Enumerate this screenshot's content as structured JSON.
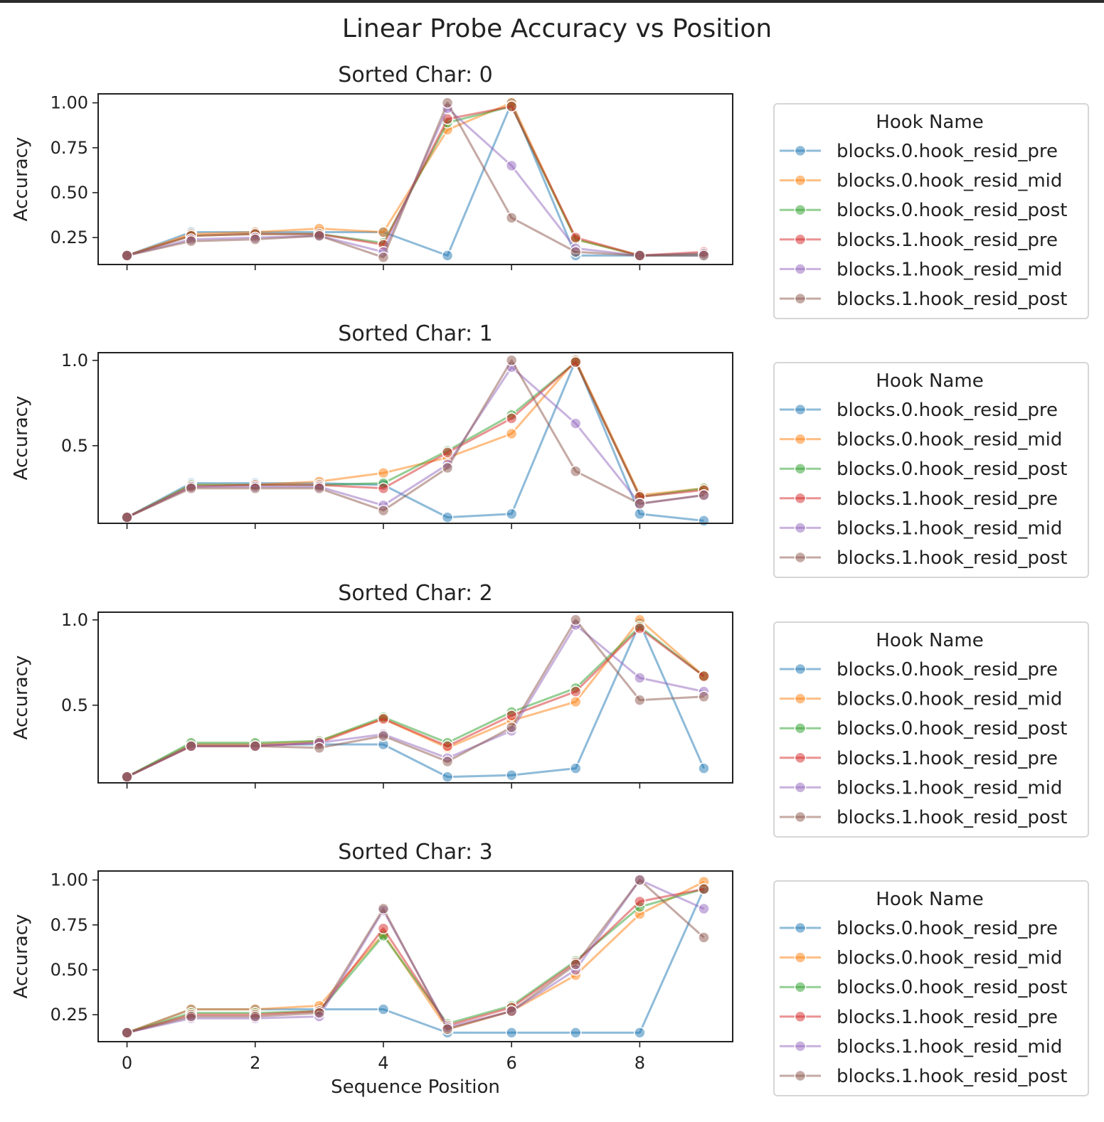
{
  "figure": {
    "title": "Linear Probe Accuracy vs Position",
    "xlabel": "Sequence Position",
    "ylabel": "Accuracy",
    "legend_title": "Hook Name"
  },
  "chart_data": [
    {
      "type": "line",
      "title": "Sorted Char: 0",
      "xlabel": "",
      "ylabel": "Accuracy",
      "x": [
        0,
        1,
        2,
        3,
        4,
        5,
        6,
        7,
        8,
        9
      ],
      "xticks": [
        "0",
        "2",
        "4",
        "6",
        "8"
      ],
      "xticks_values": [
        0,
        2,
        4,
        6,
        8
      ],
      "yticks": [
        "0.25",
        "0.50",
        "0.75",
        "1.00"
      ],
      "yticks_values": [
        0.25,
        0.5,
        0.75,
        1.0
      ],
      "xlim": [
        -0.45,
        9.45
      ],
      "ylim": [
        0.1,
        1.05
      ],
      "legend_title": "Hook Name",
      "legend_position": "right",
      "grid": false,
      "series": [
        {
          "name": "blocks.0.hook_resid_pre",
          "color": "#1f77b4",
          "values": [
            0.15,
            0.28,
            0.28,
            0.28,
            0.28,
            0.15,
            1.0,
            0.15,
            0.15,
            0.15
          ]
        },
        {
          "name": "blocks.0.hook_resid_mid",
          "color": "#ff7f0e",
          "values": [
            0.15,
            0.27,
            0.28,
            0.3,
            0.28,
            0.85,
            1.0,
            0.24,
            0.15,
            0.16
          ]
        },
        {
          "name": "blocks.0.hook_resid_post",
          "color": "#2ca02c",
          "values": [
            0.15,
            0.26,
            0.27,
            0.27,
            0.22,
            0.89,
            0.98,
            0.24,
            0.15,
            0.16
          ]
        },
        {
          "name": "blocks.1.hook_resid_pre",
          "color": "#d62728",
          "values": [
            0.15,
            0.26,
            0.27,
            0.27,
            0.21,
            0.91,
            0.98,
            0.25,
            0.15,
            0.17
          ]
        },
        {
          "name": "blocks.1.hook_resid_mid",
          "color": "#9467bd",
          "values": [
            0.15,
            0.24,
            0.25,
            0.26,
            0.17,
            0.97,
            0.65,
            0.19,
            0.15,
            0.16
          ]
        },
        {
          "name": "blocks.1.hook_resid_post",
          "color": "#8c564b",
          "values": [
            0.15,
            0.23,
            0.24,
            0.26,
            0.14,
            1.0,
            0.36,
            0.17,
            0.15,
            0.15
          ]
        }
      ]
    },
    {
      "type": "line",
      "title": "Sorted Char: 1",
      "xlabel": "",
      "ylabel": "Accuracy",
      "x": [
        0,
        1,
        2,
        3,
        4,
        5,
        6,
        7,
        8,
        9
      ],
      "xticks": [
        "0",
        "2",
        "4",
        "6",
        "8"
      ],
      "xticks_values": [
        0,
        2,
        4,
        6,
        8
      ],
      "yticks": [
        "0.5",
        "1.0"
      ],
      "yticks_values": [
        0.5,
        1.0
      ],
      "xlim": [
        -0.45,
        9.45
      ],
      "ylim": [
        0.045,
        1.045
      ],
      "legend_title": "Hook Name",
      "legend_position": "right",
      "grid": false,
      "series": [
        {
          "name": "blocks.0.hook_resid_pre",
          "color": "#1f77b4",
          "values": [
            0.08,
            0.28,
            0.28,
            0.28,
            0.27,
            0.08,
            0.1,
            1.0,
            0.1,
            0.06
          ]
        },
        {
          "name": "blocks.0.hook_resid_mid",
          "color": "#ff7f0e",
          "values": [
            0.08,
            0.27,
            0.27,
            0.29,
            0.34,
            0.43,
            0.57,
            1.0,
            0.21,
            0.25
          ]
        },
        {
          "name": "blocks.0.hook_resid_post",
          "color": "#2ca02c",
          "values": [
            0.08,
            0.27,
            0.27,
            0.27,
            0.28,
            0.47,
            0.68,
            0.99,
            0.2,
            0.25
          ]
        },
        {
          "name": "blocks.1.hook_resid_pre",
          "color": "#d62728",
          "values": [
            0.08,
            0.26,
            0.27,
            0.27,
            0.25,
            0.46,
            0.66,
            0.99,
            0.2,
            0.24
          ]
        },
        {
          "name": "blocks.1.hook_resid_mid",
          "color": "#9467bd",
          "values": [
            0.08,
            0.26,
            0.26,
            0.26,
            0.15,
            0.39,
            0.96,
            0.63,
            0.16,
            0.21
          ]
        },
        {
          "name": "blocks.1.hook_resid_post",
          "color": "#8c564b",
          "values": [
            0.08,
            0.25,
            0.25,
            0.25,
            0.12,
            0.37,
            1.0,
            0.35,
            0.16,
            0.21
          ]
        }
      ]
    },
    {
      "type": "line",
      "title": "Sorted Char: 2",
      "xlabel": "",
      "ylabel": "Accuracy",
      "x": [
        0,
        1,
        2,
        3,
        4,
        5,
        6,
        7,
        8,
        9
      ],
      "xticks": [
        "0",
        "2",
        "4",
        "6",
        "8"
      ],
      "xticks_values": [
        0,
        2,
        4,
        6,
        8
      ],
      "yticks": [
        "0.5",
        "1.0"
      ],
      "yticks_values": [
        0.5,
        1.0
      ],
      "xlim": [
        -0.45,
        9.45
      ],
      "ylim": [
        0.045,
        1.045
      ],
      "legend_title": "Hook Name",
      "legend_position": "right",
      "grid": false,
      "series": [
        {
          "name": "blocks.0.hook_resid_pre",
          "color": "#1f77b4",
          "values": [
            0.08,
            0.27,
            0.27,
            0.27,
            0.27,
            0.08,
            0.09,
            0.13,
            0.98,
            0.13
          ]
        },
        {
          "name": "blocks.0.hook_resid_mid",
          "color": "#ff7f0e",
          "values": [
            0.08,
            0.27,
            0.27,
            0.29,
            0.42,
            0.25,
            0.41,
            0.52,
            1.0,
            0.67
          ]
        },
        {
          "name": "blocks.0.hook_resid_post",
          "color": "#2ca02c",
          "values": [
            0.08,
            0.28,
            0.28,
            0.29,
            0.43,
            0.28,
            0.46,
            0.6,
            0.96,
            0.67
          ]
        },
        {
          "name": "blocks.1.hook_resid_pre",
          "color": "#d62728",
          "values": [
            0.08,
            0.26,
            0.26,
            0.28,
            0.42,
            0.26,
            0.44,
            0.58,
            0.95,
            0.67
          ]
        },
        {
          "name": "blocks.1.hook_resid_mid",
          "color": "#9467bd",
          "values": [
            0.08,
            0.26,
            0.26,
            0.28,
            0.33,
            0.19,
            0.35,
            0.97,
            0.66,
            0.58
          ]
        },
        {
          "name": "blocks.1.hook_resid_post",
          "color": "#8c564b",
          "values": [
            0.08,
            0.26,
            0.26,
            0.25,
            0.32,
            0.17,
            0.37,
            1.0,
            0.53,
            0.55
          ]
        }
      ]
    },
    {
      "type": "line",
      "title": "Sorted Char: 3",
      "xlabel": "Sequence Position",
      "ylabel": "Accuracy",
      "x": [
        0,
        1,
        2,
        3,
        4,
        5,
        6,
        7,
        8,
        9
      ],
      "xticks": [
        "0",
        "2",
        "4",
        "6",
        "8"
      ],
      "xticks_values": [
        0,
        2,
        4,
        6,
        8
      ],
      "yticks": [
        "0.25",
        "0.50",
        "0.75",
        "1.00"
      ],
      "yticks_values": [
        0.25,
        0.5,
        0.75,
        1.0
      ],
      "xlim": [
        -0.45,
        9.45
      ],
      "ylim": [
        0.1,
        1.05
      ],
      "legend_title": "Hook Name",
      "legend_position": "right",
      "grid": false,
      "series": [
        {
          "name": "blocks.0.hook_resid_pre",
          "color": "#1f77b4",
          "values": [
            0.15,
            0.28,
            0.28,
            0.28,
            0.28,
            0.15,
            0.15,
            0.15,
            0.15,
            0.95
          ]
        },
        {
          "name": "blocks.0.hook_resid_mid",
          "color": "#ff7f0e",
          "values": [
            0.15,
            0.28,
            0.28,
            0.3,
            0.7,
            0.17,
            0.27,
            0.47,
            0.81,
            0.99
          ]
        },
        {
          "name": "blocks.0.hook_resid_post",
          "color": "#2ca02c",
          "values": [
            0.15,
            0.26,
            0.26,
            0.27,
            0.69,
            0.2,
            0.3,
            0.55,
            0.85,
            0.95
          ]
        },
        {
          "name": "blocks.1.hook_resid_pre",
          "color": "#d62728",
          "values": [
            0.15,
            0.25,
            0.25,
            0.27,
            0.73,
            0.19,
            0.29,
            0.54,
            0.88,
            0.95
          ]
        },
        {
          "name": "blocks.1.hook_resid_mid",
          "color": "#9467bd",
          "values": [
            0.15,
            0.23,
            0.23,
            0.24,
            0.83,
            0.18,
            0.27,
            0.5,
            1.0,
            0.84
          ]
        },
        {
          "name": "blocks.1.hook_resid_post",
          "color": "#8c564b",
          "values": [
            0.15,
            0.24,
            0.24,
            0.26,
            0.84,
            0.17,
            0.27,
            0.53,
            1.0,
            0.68
          ]
        }
      ]
    }
  ]
}
